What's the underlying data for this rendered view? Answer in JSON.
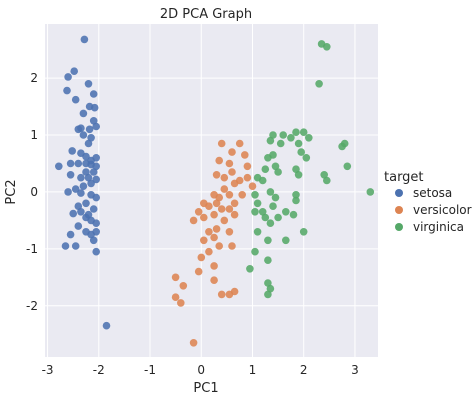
{
  "chart_data": {
    "type": "scatter",
    "title": "2D PCA Graph",
    "xlabel": "PC1",
    "ylabel": "PC2",
    "xlim": [
      -3.05,
      3.45
    ],
    "ylim": [
      -2.9,
      2.95
    ],
    "xticks": [
      -3,
      -2,
      -1,
      0,
      1,
      2,
      3
    ],
    "yticks": [
      -2,
      -1,
      0,
      1,
      2
    ],
    "grid": true,
    "background": "#eaeaf2",
    "legend": {
      "title": "target",
      "placement": "outside-right"
    },
    "series": [
      {
        "name": "setosa",
        "color": "#4c72b0",
        "points": [
          [
            -2.28,
            2.68
          ],
          [
            -2.48,
            2.12
          ],
          [
            -2.6,
            2.02
          ],
          [
            -2.2,
            1.9
          ],
          [
            -2.62,
            1.78
          ],
          [
            -2.1,
            1.72
          ],
          [
            -2.45,
            1.62
          ],
          [
            -2.18,
            1.5
          ],
          [
            -2.08,
            1.48
          ],
          [
            -2.3,
            1.38
          ],
          [
            -2.1,
            1.25
          ],
          [
            -2.05,
            1.15
          ],
          [
            -2.35,
            1.12
          ],
          [
            -2.4,
            1.1
          ],
          [
            -2.18,
            1.1
          ],
          [
            -2.3,
            1.0
          ],
          [
            -2.15,
            0.95
          ],
          [
            -2.2,
            0.85
          ],
          [
            -2.52,
            0.72
          ],
          [
            -2.35,
            0.68
          ],
          [
            -2.25,
            0.62
          ],
          [
            -2.15,
            0.55
          ],
          [
            -2.05,
            0.6
          ],
          [
            -2.55,
            0.5
          ],
          [
            -2.4,
            0.5
          ],
          [
            -2.25,
            0.5
          ],
          [
            -2.15,
            0.48
          ],
          [
            -2.05,
            0.45
          ],
          [
            -2.78,
            0.45
          ],
          [
            -2.25,
            0.35
          ],
          [
            -2.1,
            0.35
          ],
          [
            -2.55,
            0.3
          ],
          [
            -2.35,
            0.25
          ],
          [
            -2.2,
            0.25
          ],
          [
            -2.05,
            0.22
          ],
          [
            -2.15,
            0.15
          ],
          [
            -2.3,
            0.1
          ],
          [
            -2.45,
            0.05
          ],
          [
            -2.6,
            0.0
          ],
          [
            -2.35,
            -0.02
          ],
          [
            -2.15,
            -0.05
          ],
          [
            -2.05,
            -0.1
          ],
          [
            -2.25,
            -0.2
          ],
          [
            -2.4,
            -0.25
          ],
          [
            -2.1,
            -0.3
          ],
          [
            -2.35,
            -0.35
          ],
          [
            -2.5,
            -0.38
          ],
          [
            -2.2,
            -0.4
          ],
          [
            -2.25,
            -0.45
          ],
          [
            -2.15,
            -0.5
          ],
          [
            -2.05,
            -0.55
          ],
          [
            -2.4,
            -0.6
          ],
          [
            -2.25,
            -0.7
          ],
          [
            -2.05,
            -0.7
          ],
          [
            -2.15,
            -0.75
          ],
          [
            -2.55,
            -0.75
          ],
          [
            -2.1,
            -0.85
          ],
          [
            -2.45,
            -0.95
          ],
          [
            -2.65,
            -0.95
          ],
          [
            -2.05,
            -1.05
          ],
          [
            -1.85,
            -2.35
          ]
        ]
      },
      {
        "name": "versicolor",
        "color": "#dd8452",
        "points": [
          [
            0.4,
            0.85
          ],
          [
            0.75,
            0.85
          ],
          [
            0.6,
            0.7
          ],
          [
            0.85,
            0.65
          ],
          [
            0.35,
            0.55
          ],
          [
            0.55,
            0.5
          ],
          [
            0.9,
            0.45
          ],
          [
            0.6,
            0.35
          ],
          [
            0.3,
            0.3
          ],
          [
            0.45,
            0.25
          ],
          [
            0.9,
            0.25
          ],
          [
            0.75,
            0.2
          ],
          [
            0.65,
            0.15
          ],
          [
            1.0,
            0.1
          ],
          [
            0.45,
            0.05
          ],
          [
            0.25,
            -0.05
          ],
          [
            0.55,
            -0.05
          ],
          [
            0.8,
            -0.05
          ],
          [
            0.35,
            -0.1
          ],
          [
            0.05,
            -0.2
          ],
          [
            0.3,
            -0.2
          ],
          [
            0.65,
            -0.2
          ],
          [
            0.15,
            -0.25
          ],
          [
            0.4,
            -0.3
          ],
          [
            0.55,
            -0.3
          ],
          [
            -0.05,
            -0.35
          ],
          [
            0.25,
            -0.4
          ],
          [
            0.65,
            -0.4
          ],
          [
            0.05,
            -0.45
          ],
          [
            0.45,
            -0.5
          ],
          [
            -0.15,
            -0.5
          ],
          [
            0.3,
            -0.65
          ],
          [
            0.15,
            -0.7
          ],
          [
            0.55,
            -0.7
          ],
          [
            0.25,
            -0.8
          ],
          [
            0.05,
            -0.85
          ],
          [
            0.35,
            -0.95
          ],
          [
            0.6,
            -0.95
          ],
          [
            0.15,
            -1.05
          ],
          [
            0.0,
            -1.15
          ],
          [
            0.25,
            -1.3
          ],
          [
            -0.05,
            -1.4
          ],
          [
            -0.5,
            -1.5
          ],
          [
            0.25,
            -1.55
          ],
          [
            -0.35,
            -1.65
          ],
          [
            0.65,
            -1.75
          ],
          [
            0.4,
            -1.8
          ],
          [
            0.55,
            -1.8
          ],
          [
            -0.5,
            -1.85
          ],
          [
            -0.4,
            -1.95
          ],
          [
            -0.15,
            -2.65
          ]
        ]
      },
      {
        "name": "virginica",
        "color": "#55a868",
        "points": [
          [
            2.35,
            2.6
          ],
          [
            2.45,
            2.55
          ],
          [
            2.3,
            1.9
          ],
          [
            1.4,
            1.0
          ],
          [
            1.6,
            1.0
          ],
          [
            1.85,
            1.05
          ],
          [
            2.0,
            1.05
          ],
          [
            2.1,
            0.95
          ],
          [
            1.75,
            0.95
          ],
          [
            1.35,
            0.9
          ],
          [
            1.55,
            0.85
          ],
          [
            1.9,
            0.85
          ],
          [
            2.8,
            0.85
          ],
          [
            2.75,
            0.8
          ],
          [
            1.95,
            0.7
          ],
          [
            1.4,
            0.65
          ],
          [
            1.3,
            0.6
          ],
          [
            2.05,
            0.6
          ],
          [
            2.85,
            0.45
          ],
          [
            1.45,
            0.45
          ],
          [
            1.25,
            0.4
          ],
          [
            1.85,
            0.4
          ],
          [
            1.5,
            0.35
          ],
          [
            1.9,
            0.3
          ],
          [
            2.4,
            0.3
          ],
          [
            1.1,
            0.25
          ],
          [
            1.2,
            0.2
          ],
          [
            2.45,
            0.2
          ],
          [
            3.3,
            0.0
          ],
          [
            1.35,
            0.0
          ],
          [
            1.05,
            -0.05
          ],
          [
            1.45,
            -0.1
          ],
          [
            1.85,
            -0.05
          ],
          [
            1.1,
            -0.2
          ],
          [
            1.85,
            -0.15
          ],
          [
            1.4,
            -0.25
          ],
          [
            1.05,
            -0.35
          ],
          [
            1.2,
            -0.35
          ],
          [
            1.65,
            -0.35
          ],
          [
            1.8,
            -0.4
          ],
          [
            1.25,
            -0.45
          ],
          [
            1.5,
            -0.45
          ],
          [
            1.35,
            -0.55
          ],
          [
            2.0,
            -0.7
          ],
          [
            1.1,
            -0.7
          ],
          [
            1.65,
            -0.85
          ],
          [
            1.3,
            -0.85
          ],
          [
            1.05,
            -1.05
          ],
          [
            1.3,
            -1.2
          ],
          [
            0.95,
            -1.35
          ],
          [
            1.3,
            -1.6
          ],
          [
            1.35,
            -1.7
          ],
          [
            1.3,
            -1.8
          ]
        ]
      }
    ]
  }
}
